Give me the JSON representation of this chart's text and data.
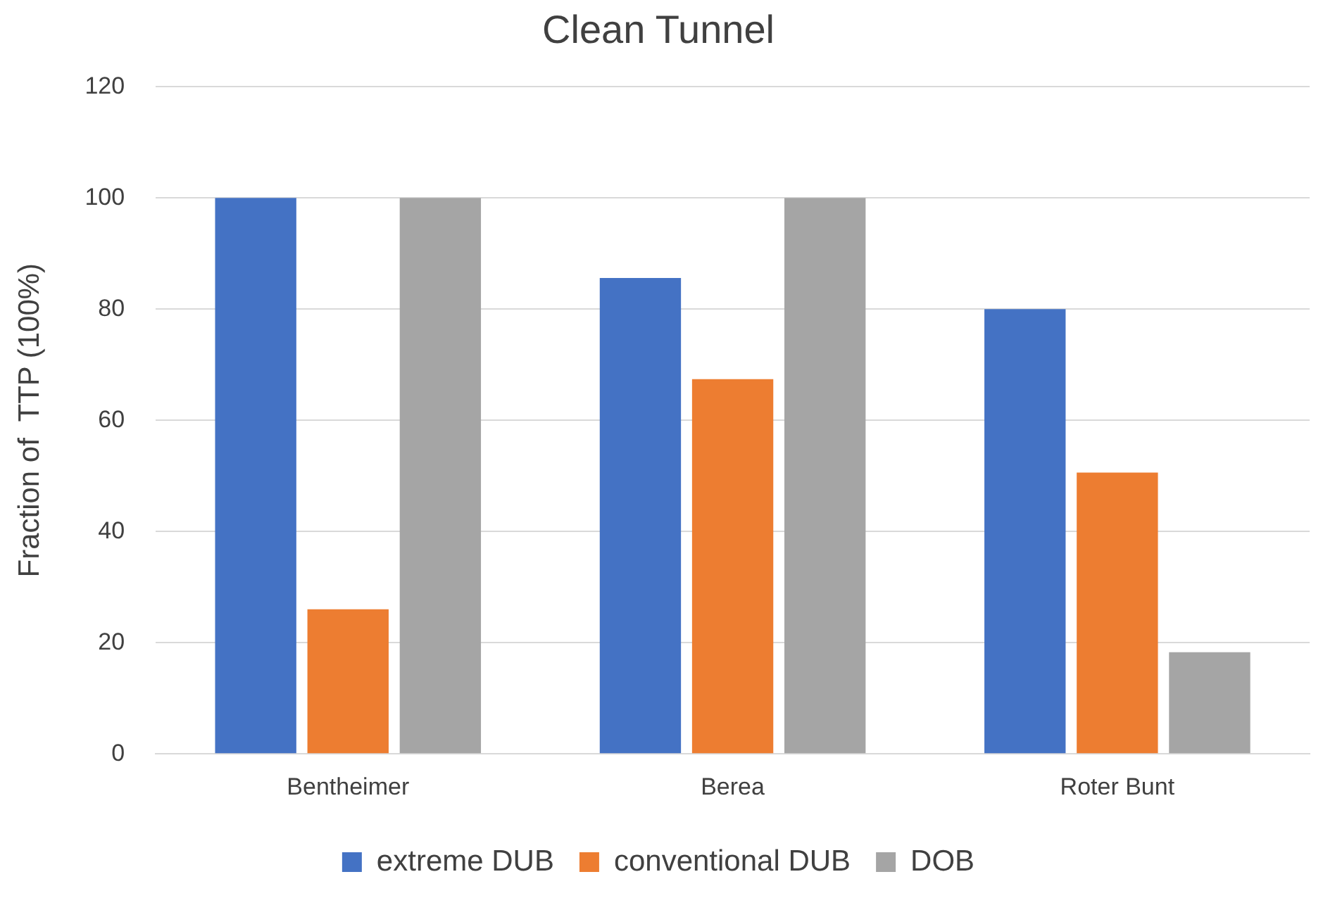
{
  "chart_data": {
    "type": "bar",
    "title": "Clean Tunnel",
    "ylabel": "Fraction of  TTP (100%)",
    "categories": [
      "Bentheimer",
      "Berea",
      "Roter Bunt"
    ],
    "series": [
      {
        "name": "extreme DUB",
        "color": "#4472c4",
        "values": [
          100,
          85.6,
          80.0
        ]
      },
      {
        "name": "conventional DUB",
        "color": "#ed7d31",
        "values": [
          26.0,
          67.4,
          50.6
        ]
      },
      {
        "name": "DOB",
        "color": "#a5a5a5",
        "values": [
          100,
          100,
          18.3
        ]
      }
    ],
    "ylim": [
      0,
      120
    ],
    "yticks": [
      0,
      20,
      40,
      60,
      80,
      100,
      120
    ],
    "grid": "y",
    "legend": "bottom"
  }
}
